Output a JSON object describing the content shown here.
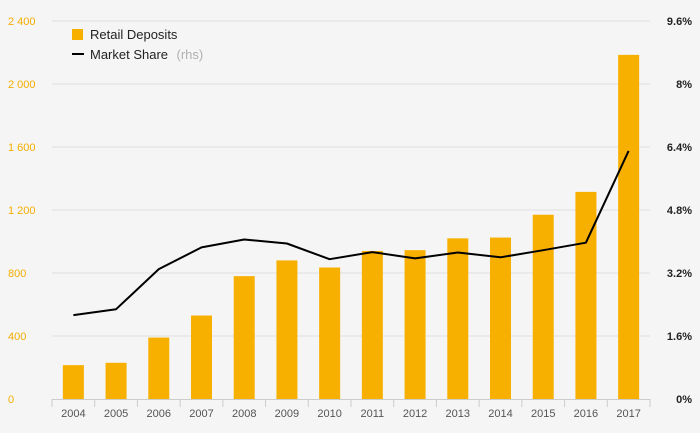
{
  "chart_data": {
    "type": "bar",
    "categories": [
      "2004",
      "2005",
      "2006",
      "2007",
      "2008",
      "2009",
      "2010",
      "2011",
      "2012",
      "2013",
      "2014",
      "2015",
      "2016",
      "2017"
    ],
    "series": [
      {
        "name": "Retail Deposits",
        "type": "bar",
        "axis": "left",
        "color": "#f8b000",
        "values": [
          215,
          230,
          390,
          530,
          780,
          880,
          835,
          940,
          945,
          1020,
          1025,
          1170,
          1315,
          2185
        ]
      },
      {
        "name": "Market Share",
        "name_suffix": "(rhs)",
        "type": "line",
        "axis": "right",
        "color": "#000000",
        "values": [
          2.13,
          2.28,
          3.3,
          3.85,
          4.05,
          3.95,
          3.55,
          3.73,
          3.57,
          3.72,
          3.6,
          3.78,
          3.97,
          6.3
        ]
      }
    ],
    "left_axis": {
      "ylim": [
        0,
        2400
      ],
      "ticks": [
        0,
        400,
        800,
        1200,
        1600,
        2000,
        2400
      ],
      "tick_labels": [
        "0",
        "400",
        "800",
        "1 200",
        "1 600",
        "2 000",
        "2 400"
      ],
      "color": "#f5ad00"
    },
    "right_axis": {
      "ylim": [
        0,
        9.6
      ],
      "ticks": [
        0,
        1.6,
        3.2,
        4.8,
        6.4,
        8,
        9.6
      ],
      "tick_labels": [
        "0%",
        "1.6%",
        "3.2%",
        "4.8%",
        "6.4%",
        "8%",
        "9.6%"
      ],
      "color": "#222222"
    },
    "grid": true,
    "legend_position": "top-left"
  }
}
